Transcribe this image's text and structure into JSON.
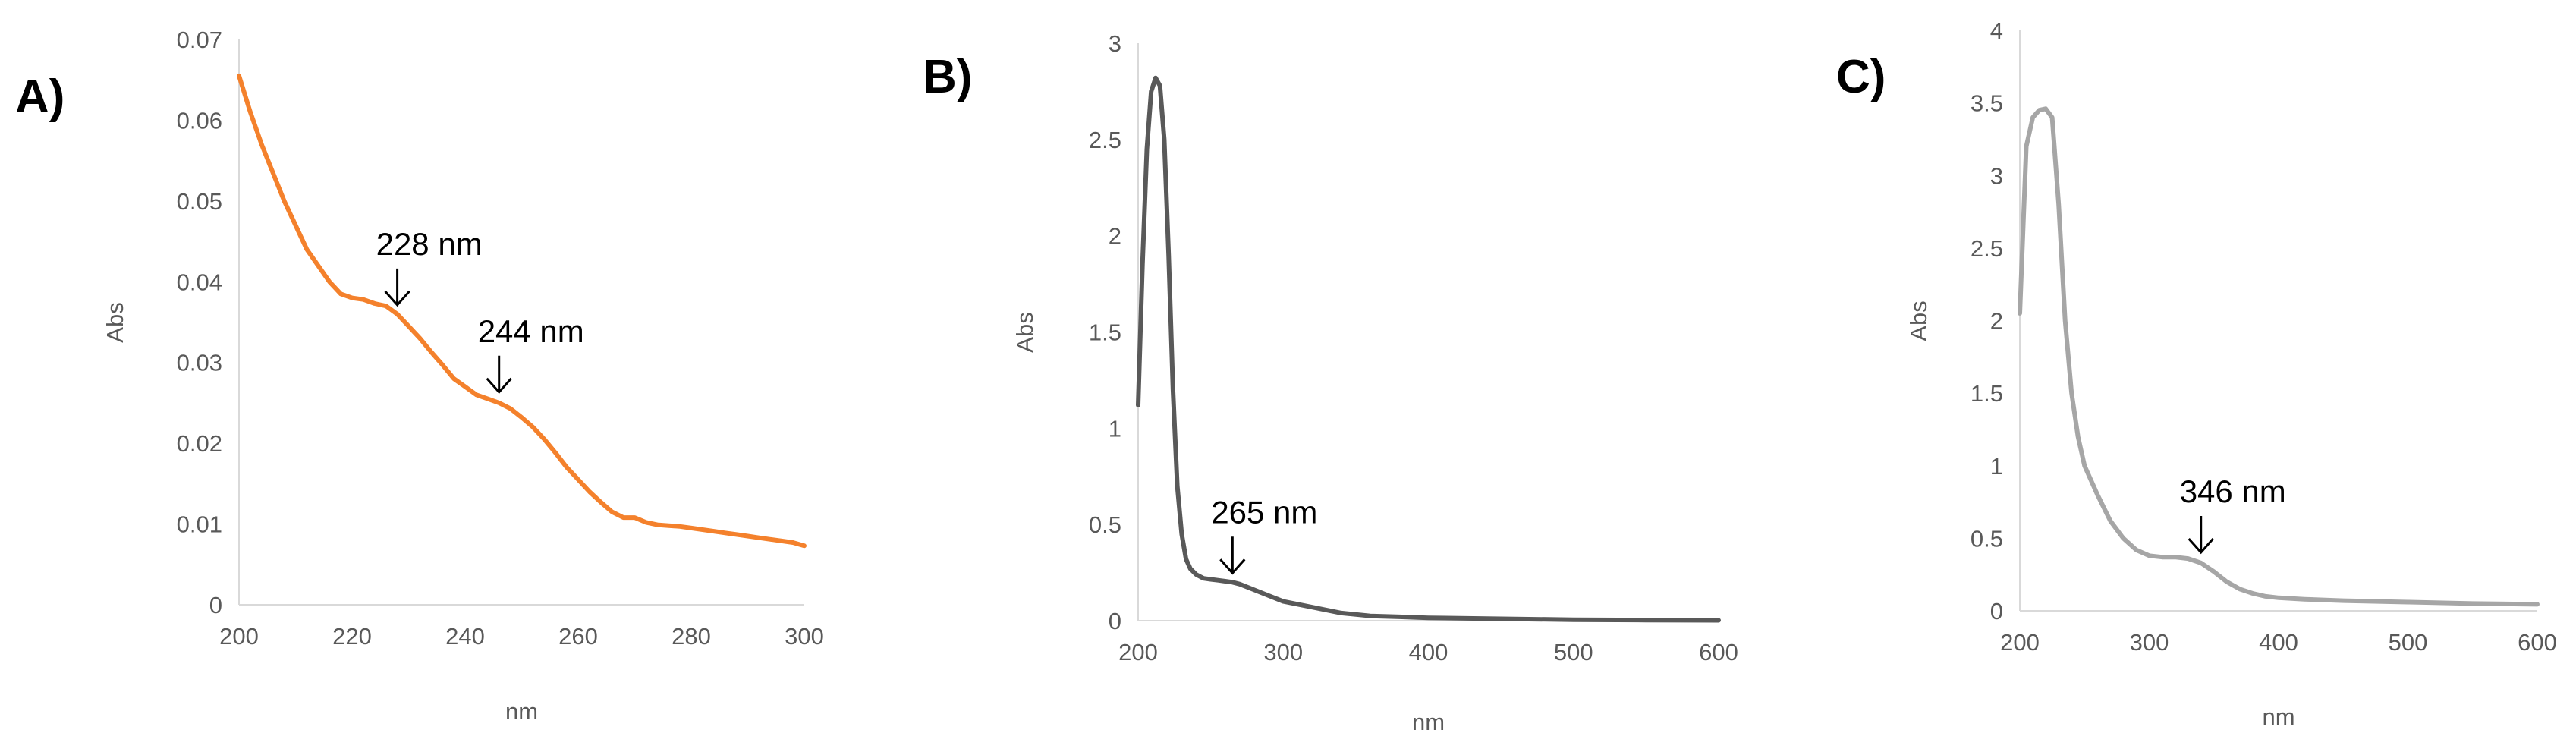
{
  "chart_data": [
    {
      "type": "line",
      "panel_label": "A)",
      "xlabel": "nm",
      "ylabel": "Abs",
      "xlim": [
        200,
        300
      ],
      "ylim": [
        0,
        0.07
      ],
      "x_ticks": [
        "200",
        "220",
        "240",
        "260",
        "280",
        "300"
      ],
      "y_ticks": [
        "0",
        "0.01",
        "0.02",
        "0.03",
        "0.04",
        "0.05",
        "0.06",
        "0.07"
      ],
      "grid": false,
      "line_color": "#f4812c",
      "series": [
        {
          "x": [
            200,
            202,
            204,
            206,
            208,
            210,
            212,
            214,
            216,
            218,
            220,
            222,
            224,
            226,
            228,
            230,
            232,
            234,
            236,
            238,
            240,
            242,
            244,
            246,
            248,
            250,
            252,
            254,
            256,
            258,
            260,
            262,
            264,
            266,
            268,
            270,
            272,
            274,
            276,
            278,
            280,
            282,
            284,
            286,
            288,
            290,
            292,
            294,
            296,
            298,
            300
          ],
          "values": [
            0.0655,
            0.061,
            0.057,
            0.0535,
            0.05,
            0.047,
            0.044,
            0.042,
            0.04,
            0.0385,
            0.038,
            0.0378,
            0.0373,
            0.037,
            0.036,
            0.0345,
            0.033,
            0.0313,
            0.0297,
            0.028,
            0.027,
            0.026,
            0.0255,
            0.025,
            0.0243,
            0.0232,
            0.022,
            0.0205,
            0.0188,
            0.017,
            0.0155,
            0.014,
            0.0127,
            0.0115,
            0.0108,
            0.0108,
            0.0102,
            0.0099,
            0.0098,
            0.0097,
            0.0095,
            0.0093,
            0.0091,
            0.0089,
            0.0087,
            0.0085,
            0.0083,
            0.0081,
            0.0079,
            0.0077,
            0.0073
          ]
        }
      ],
      "annotations": [
        {
          "text": "228 nm",
          "x": 228,
          "y": 0.036
        },
        {
          "text": "244 nm",
          "x": 246,
          "y": 0.0252
        }
      ]
    },
    {
      "type": "line",
      "panel_label": "B)",
      "xlabel": "nm",
      "ylabel": "Abs",
      "xlim": [
        200,
        600
      ],
      "ylim": [
        0,
        3
      ],
      "x_ticks": [
        "200",
        "300",
        "400",
        "500",
        "600"
      ],
      "y_ticks": [
        "0",
        "0.5",
        "1",
        "1.5",
        "2",
        "2.5",
        "3"
      ],
      "grid": false,
      "line_color": "#595959",
      "series": [
        {
          "x": [
            200,
            203,
            206,
            209,
            212,
            215,
            218,
            221,
            224,
            227,
            230,
            233,
            236,
            240,
            245,
            250,
            255,
            260,
            265,
            270,
            280,
            290,
            300,
            320,
            340,
            360,
            380,
            400,
            450,
            500,
            550,
            600
          ],
          "values": [
            1.12,
            1.85,
            2.45,
            2.75,
            2.82,
            2.78,
            2.5,
            1.9,
            1.2,
            0.7,
            0.45,
            0.32,
            0.27,
            0.24,
            0.22,
            0.215,
            0.21,
            0.205,
            0.2,
            0.19,
            0.16,
            0.13,
            0.1,
            0.07,
            0.04,
            0.025,
            0.02,
            0.015,
            0.01,
            0.005,
            0.003,
            0.002
          ]
        }
      ],
      "annotations": [
        {
          "text": "265 nm",
          "x": 265,
          "y": 0.2
        }
      ]
    },
    {
      "type": "line",
      "panel_label": "C)",
      "xlabel": "nm",
      "ylabel": "Abs",
      "xlim": [
        200,
        600
      ],
      "ylim": [
        0,
        4
      ],
      "x_ticks": [
        "200",
        "300",
        "400",
        "500",
        "600"
      ],
      "y_ticks": [
        "0",
        "0.5",
        "1",
        "1.5",
        "2",
        "2.5",
        "3",
        "3.5",
        "4"
      ],
      "grid": false,
      "line_color": "#a6a6a6",
      "series": [
        {
          "x": [
            200,
            205,
            210,
            215,
            220,
            225,
            230,
            235,
            240,
            245,
            250,
            260,
            270,
            280,
            290,
            300,
            310,
            320,
            330,
            340,
            350,
            360,
            370,
            380,
            390,
            400,
            420,
            450,
            500,
            550,
            600
          ],
          "values": [
            2.05,
            3.2,
            3.4,
            3.45,
            3.46,
            3.4,
            2.8,
            2.0,
            1.5,
            1.2,
            1.0,
            0.8,
            0.62,
            0.5,
            0.42,
            0.38,
            0.37,
            0.37,
            0.36,
            0.33,
            0.27,
            0.2,
            0.15,
            0.12,
            0.1,
            0.09,
            0.08,
            0.07,
            0.06,
            0.05,
            0.045
          ]
        }
      ],
      "annotations": [
        {
          "text": "346 nm",
          "x": 340,
          "y": 0.34
        }
      ]
    }
  ]
}
